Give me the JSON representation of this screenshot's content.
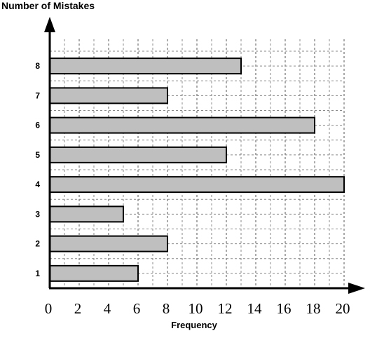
{
  "chart_data": {
    "type": "bar",
    "orientation": "horizontal",
    "categories": [
      "1",
      "2",
      "3",
      "4",
      "5",
      "6",
      "7",
      "8"
    ],
    "values": [
      6,
      8,
      5,
      20,
      12,
      18,
      8,
      13
    ],
    "title": "",
    "xlabel": "Frequency",
    "ylabel": "Number of Mistakes",
    "xlim": [
      0,
      20
    ],
    "xticks": [
      "0",
      "2",
      "4",
      "6",
      "8",
      "10",
      "12",
      "14",
      "16",
      "18",
      "20"
    ],
    "grid": "dashed",
    "bar_color": "#bfbfbf",
    "bar_edge_color": "#000000"
  }
}
